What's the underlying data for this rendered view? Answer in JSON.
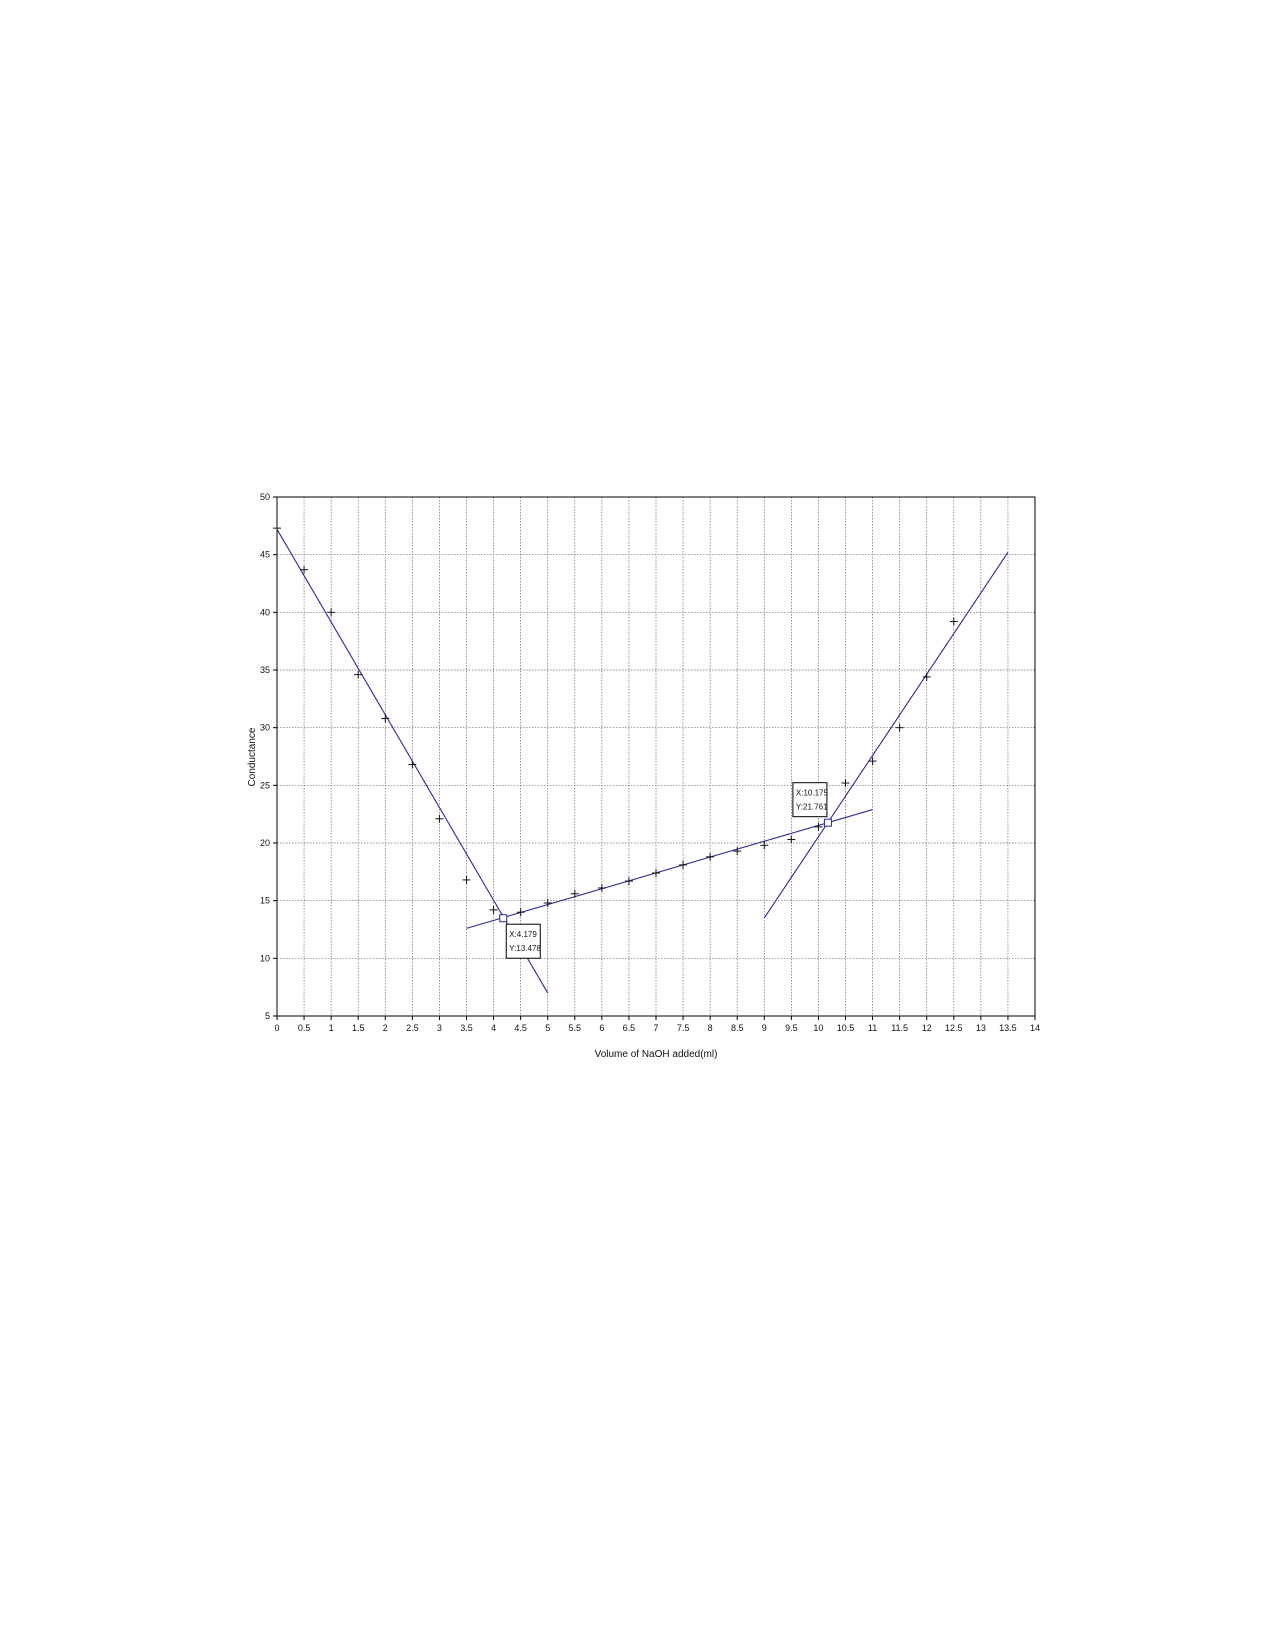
{
  "chart_data": {
    "type": "scatter",
    "title": "",
    "xlabel": "Volume of NaOH added(ml)",
    "ylabel": "Conductance",
    "xlim": [
      0,
      14
    ],
    "ylim": [
      5,
      50
    ],
    "x_ticks": [
      "0",
      "0.5",
      "1",
      "1.5",
      "2",
      "2.5",
      "3",
      "3.5",
      "4",
      "4.5",
      "5",
      "5.5",
      "6",
      "6.5",
      "7",
      "7.5",
      "8",
      "8.5",
      "9",
      "9.5",
      "10",
      "10.5",
      "11",
      "11.5",
      "12",
      "12.5",
      "13",
      "13.5",
      "14"
    ],
    "y_ticks": [
      "5",
      "10",
      "15",
      "20",
      "25",
      "30",
      "35",
      "40",
      "45",
      "50"
    ],
    "grid": true,
    "points": {
      "x": [
        0,
        0.5,
        1,
        1.5,
        2,
        2.5,
        3,
        3.5,
        4,
        4.5,
        5,
        5.5,
        6,
        6.5,
        7,
        7.5,
        8,
        8.5,
        9,
        9.5,
        10,
        10.5,
        11,
        11.5,
        12,
        12.5
      ],
      "y": [
        47.3,
        43.7,
        40.0,
        34.6,
        30.8,
        26.8,
        22.1,
        16.8,
        14.2,
        14.0,
        14.8,
        15.6,
        16.1,
        16.7,
        17.4,
        18.1,
        18.8,
        19.3,
        19.8,
        20.3,
        21.4,
        25.2,
        27.1,
        30.0,
        34.4,
        39.2
      ]
    },
    "fit_lines": [
      {
        "x": [
          0,
          5
        ],
        "y": [
          47.2,
          7.0
        ]
      },
      {
        "x": [
          3.5,
          11
        ],
        "y": [
          12.6,
          22.9
        ]
      },
      {
        "x": [
          9,
          13.5
        ],
        "y": [
          13.5,
          45.2
        ]
      }
    ],
    "annotations": [
      {
        "x": 4.179,
        "y": 13.478,
        "line1": "X:4.179",
        "line2": "Y:13.478"
      },
      {
        "x": 10.175,
        "y": 21.761,
        "line1": "X:10.175",
        "line2": "Y:21.761"
      }
    ],
    "colors": {
      "line": "#2b2b9a",
      "marker": "#111111",
      "grid": "#666666"
    }
  }
}
